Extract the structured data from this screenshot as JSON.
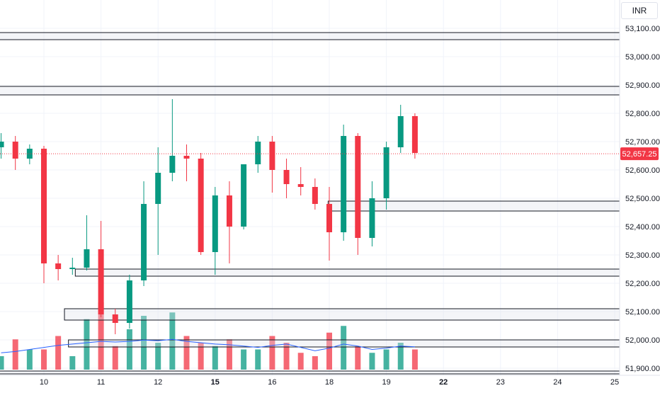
{
  "chart_data": {
    "type": "candlestick",
    "currency": "INR",
    "last_price": "52,657.25",
    "last_price_value": 52657.25,
    "ylim": [
      51870,
      53230
    ],
    "y_ticks": [
      {
        "value": 53100,
        "label": "53,100.00"
      },
      {
        "value": 53000,
        "label": "53,000.00"
      },
      {
        "value": 52900,
        "label": "52,900.00"
      },
      {
        "value": 52800,
        "label": "52,800.00"
      },
      {
        "value": 52700,
        "label": "52,700.00"
      },
      {
        "value": 52600,
        "label": "52,600.00"
      },
      {
        "value": 52500,
        "label": "52,500.00"
      },
      {
        "value": 52400,
        "label": "52,400.00"
      },
      {
        "value": 52300,
        "label": "52,300.00"
      },
      {
        "value": 52200,
        "label": "52,200.00"
      },
      {
        "value": 52100,
        "label": "52,100.00"
      },
      {
        "value": 52000,
        "label": "52,000.00"
      },
      {
        "value": 51900,
        "label": "51,900.00"
      }
    ],
    "x_ticks": [
      {
        "day": 10,
        "label": "10",
        "bold": false
      },
      {
        "day": 11,
        "label": "11",
        "bold": false
      },
      {
        "day": 12,
        "label": "12",
        "bold": false
      },
      {
        "day": 13,
        "label": "15",
        "bold": true
      },
      {
        "day": 14,
        "label": "16",
        "bold": false
      },
      {
        "day": 15,
        "label": "18",
        "bold": false
      },
      {
        "day": 16,
        "label": "19",
        "bold": false
      },
      {
        "day": 17,
        "label": "22",
        "bold": true
      },
      {
        "day": 18,
        "label": "23",
        "bold": false
      },
      {
        "day": 19,
        "label": "24",
        "bold": false
      },
      {
        "day": 20,
        "label": "25",
        "bold": false
      }
    ],
    "zones": [
      {
        "low": 53060,
        "high": 53085,
        "start_day": 9.2
      },
      {
        "low": 52865,
        "high": 52895,
        "start_day": 9.2
      },
      {
        "low": 52455,
        "high": 52490,
        "start_day": 14.98
      },
      {
        "low": 52225,
        "high": 52250,
        "start_day": 10.55
      },
      {
        "low": 52070,
        "high": 52110,
        "start_day": 10.36
      },
      {
        "low": 51975,
        "high": 52000,
        "start_day": 10.43
      },
      {
        "low": 51880,
        "high": 51890,
        "start_day": 9.2
      }
    ],
    "series": [
      {
        "type": "candlestick",
        "candles": [
          {
            "day": 9.25,
            "o": 52680,
            "h": 52730,
            "l": 52640,
            "c": 52700
          },
          {
            "day": 9.5,
            "o": 52700,
            "h": 52720,
            "l": 52600,
            "c": 52640
          },
          {
            "day": 9.75,
            "o": 52640,
            "h": 52690,
            "l": 52620,
            "c": 52675
          },
          {
            "day": 10.0,
            "o": 52675,
            "h": 52685,
            "l": 52200,
            "c": 52270
          },
          {
            "day": 10.25,
            "o": 52270,
            "h": 52300,
            "l": 52210,
            "c": 52250
          },
          {
            "day": 10.5,
            "o": 52250,
            "h": 52290,
            "l": 52230,
            "c": 52255
          },
          {
            "day": 10.75,
            "o": 52255,
            "h": 52440,
            "l": 52245,
            "c": 52320
          },
          {
            "day": 11.0,
            "o": 52320,
            "h": 52420,
            "l": 52080,
            "c": 52090
          },
          {
            "day": 11.25,
            "o": 52090,
            "h": 52110,
            "l": 52020,
            "c": 52060
          },
          {
            "day": 11.5,
            "o": 52060,
            "h": 52230,
            "l": 52040,
            "c": 52210
          },
          {
            "day": 11.75,
            "o": 52210,
            "h": 52560,
            "l": 52190,
            "c": 52480
          },
          {
            "day": 12.0,
            "o": 52480,
            "h": 52680,
            "l": 52300,
            "c": 52590
          },
          {
            "day": 12.25,
            "o": 52590,
            "h": 52850,
            "l": 52560,
            "c": 52650
          },
          {
            "day": 12.5,
            "o": 52650,
            "h": 52690,
            "l": 52560,
            "c": 52640
          },
          {
            "day": 12.75,
            "o": 52640,
            "h": 52660,
            "l": 52300,
            "c": 52310
          },
          {
            "day": 13.0,
            "o": 52310,
            "h": 52540,
            "l": 52230,
            "c": 52510
          },
          {
            "day": 13.25,
            "o": 52510,
            "h": 52560,
            "l": 52270,
            "c": 52400
          },
          {
            "day": 13.5,
            "o": 52400,
            "h": 52620,
            "l": 52390,
            "c": 52620
          },
          {
            "day": 13.75,
            "o": 52620,
            "h": 52720,
            "l": 52590,
            "c": 52700
          },
          {
            "day": 14.0,
            "o": 52700,
            "h": 52720,
            "l": 52520,
            "c": 52600
          },
          {
            "day": 14.25,
            "o": 52600,
            "h": 52640,
            "l": 52500,
            "c": 52550
          },
          {
            "day": 14.5,
            "o": 52550,
            "h": 52610,
            "l": 52510,
            "c": 52540
          },
          {
            "day": 14.75,
            "o": 52540,
            "h": 52570,
            "l": 52460,
            "c": 52480
          },
          {
            "day": 15.0,
            "o": 52480,
            "h": 52540,
            "l": 52280,
            "c": 52380
          },
          {
            "day": 15.25,
            "o": 52380,
            "h": 52760,
            "l": 52350,
            "c": 52720
          },
          {
            "day": 15.5,
            "o": 52720,
            "h": 52730,
            "l": 52300,
            "c": 52360
          },
          {
            "day": 15.75,
            "o": 52360,
            "h": 52560,
            "l": 52330,
            "c": 52500
          },
          {
            "day": 16.0,
            "o": 52500,
            "h": 52700,
            "l": 52460,
            "c": 52680
          },
          {
            "day": 16.25,
            "o": 52680,
            "h": 52830,
            "l": 52660,
            "c": 52790
          },
          {
            "day": 16.5,
            "o": 52790,
            "h": 52800,
            "l": 52640,
            "c": 52660
          }
        ]
      },
      {
        "type": "volume",
        "name": "Volume",
        "values": [
          0.2,
          0.45,
          0.3,
          0.3,
          0.5,
          0.2,
          0.75,
          1.0,
          0.35,
          0.6,
          0.8,
          0.4,
          0.85,
          0.5,
          0.4,
          0.35,
          0.45,
          0.3,
          0.3,
          0.5,
          0.4,
          0.25,
          0.2,
          0.55,
          0.65,
          0.35,
          0.25,
          0.3,
          0.4,
          0.3
        ]
      },
      {
        "type": "line",
        "name": "Volume MA",
        "values": [
          0.25,
          0.27,
          0.3,
          0.33,
          0.36,
          0.38,
          0.4,
          0.42,
          0.41,
          0.42,
          0.44,
          0.43,
          0.45,
          0.42,
          0.4,
          0.38,
          0.37,
          0.35,
          0.33,
          0.36,
          0.38,
          0.33,
          0.28,
          0.32,
          0.38,
          0.35,
          0.3,
          0.32,
          0.35,
          0.34
        ]
      }
    ]
  }
}
